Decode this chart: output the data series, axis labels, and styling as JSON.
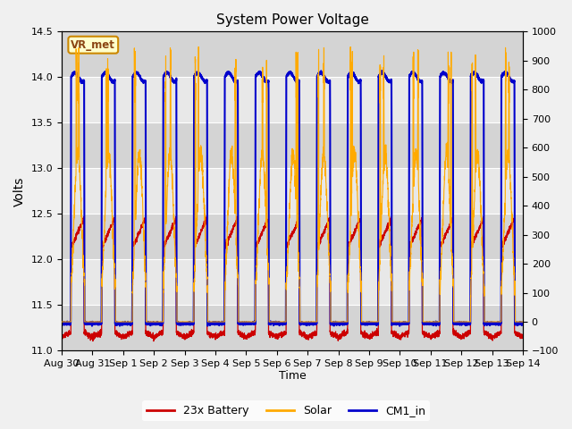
{
  "title": "System Power Voltage",
  "xlabel": "Time",
  "ylabel_left": "Volts",
  "ylim_left": [
    11.0,
    14.5
  ],
  "ylim_right": [
    -100,
    1000
  ],
  "yticks_left": [
    11.0,
    11.5,
    12.0,
    12.5,
    13.0,
    13.5,
    14.0,
    14.5
  ],
  "yticks_right": [
    -100,
    0,
    100,
    200,
    300,
    400,
    500,
    600,
    700,
    800,
    900,
    1000
  ],
  "annotation_text": "VR_met",
  "bg_color": "#e8e8e8",
  "fig_color": "#f0f0f0",
  "line_battery_color": "#cc0000",
  "line_solar_color": "#ffaa00",
  "line_cm1_color": "#0000cc",
  "line_battery_label": "23x Battery",
  "line_solar_label": "Solar",
  "line_cm1_label": "CM1_in",
  "tick_labels": [
    "Aug 30",
    "Aug 31",
    "Sep 1",
    "Sep 2",
    "Sep 3",
    "Sep 4",
    "Sep 5",
    "Sep 6",
    "Sep 7",
    "Sep 8",
    "Sep 9",
    "Sep 10",
    "Sep 11",
    "Sep 12",
    "Sep 13",
    "Sep 14"
  ]
}
